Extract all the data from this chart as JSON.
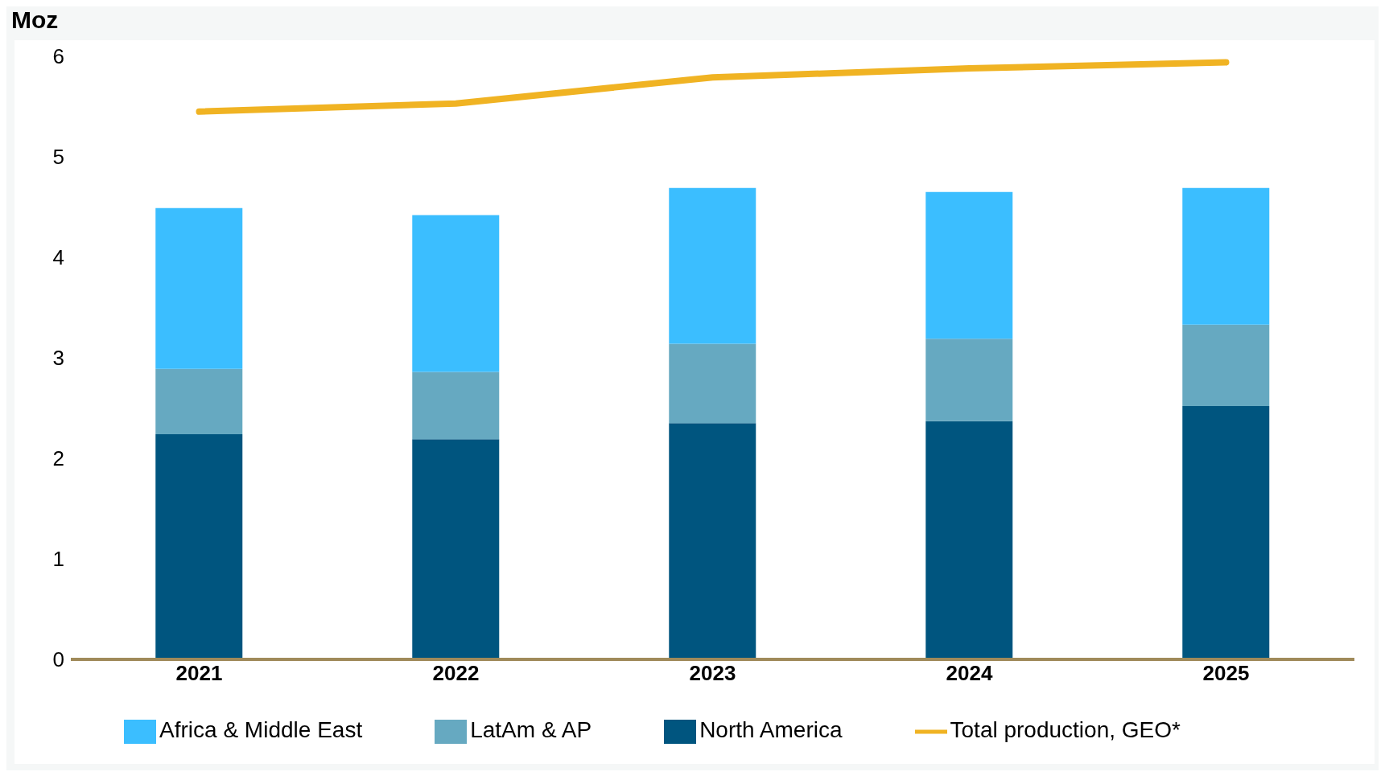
{
  "chart_data": {
    "type": "bar",
    "stacked": true,
    "ylabel": "Moz",
    "categories": [
      "2021",
      "2022",
      "2023",
      "2024",
      "2025"
    ],
    "series": [
      {
        "name": "North America",
        "color": "#00557f",
        "values": [
          2.24,
          2.19,
          2.35,
          2.37,
          2.52
        ]
      },
      {
        "name": "LatAm & AP",
        "color": "#66a9c1",
        "values": [
          0.65,
          0.67,
          0.79,
          0.82,
          0.81
        ]
      },
      {
        "name": "Africa & Middle East",
        "color": "#3bbeff",
        "values": [
          1.6,
          1.56,
          1.55,
          1.46,
          1.36
        ]
      },
      {
        "name": "Total production, GEO*",
        "type": "line",
        "color": "#f0b323",
        "values": [
          5.45,
          5.53,
          5.79,
          5.88,
          5.94
        ]
      }
    ],
    "ylim": [
      0,
      6
    ],
    "yticks": [
      0,
      1,
      2,
      3,
      4,
      5,
      6
    ],
    "grid": false,
    "legend": "bottom"
  }
}
